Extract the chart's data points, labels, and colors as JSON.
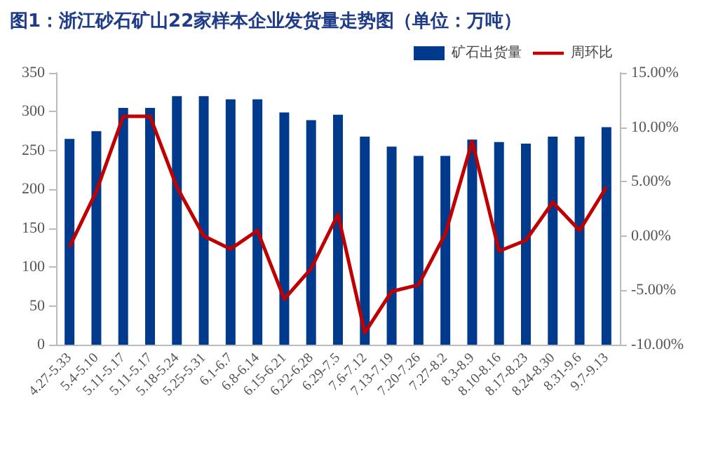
{
  "chart_data": {
    "type": "bar",
    "title": "图1：浙江砂石矿山22家样本企业发货量走势图（单位：万吨）",
    "categories": [
      "4.27-5.33",
      "5.4-5.10",
      "5.11-5.17",
      "5.11-5.17",
      "5.18-5.24",
      "5.25-5.31",
      "6.1-6.7",
      "6.8-6.14",
      "6.15-6.21",
      "6.22-6.28",
      "6.29-7.5",
      "7.6-7.12",
      "7.13-7.19",
      "7.20-7.26",
      "7.27-8.2",
      "8.3-8.9",
      "8.10-8.16",
      "8.17-8.23",
      "8.24-8.30",
      "8.31-9.6",
      "9.7-9.13"
    ],
    "series": [
      {
        "name": "矿石出货量",
        "color": "#003a8c",
        "values": [
          265,
          275,
          305,
          305,
          320,
          320,
          316,
          316,
          299,
          289,
          296,
          268,
          255,
          243,
          243,
          264,
          261,
          259,
          268,
          268,
          280
        ]
      },
      {
        "name": "周环比",
        "type": "line",
        "axis": "y2",
        "color": "#c00000",
        "values": [
          -1.0,
          4.1,
          11.0,
          11.0,
          4.5,
          0.0,
          -1.2,
          0.5,
          -5.8,
          -3.0,
          2.0,
          -8.9,
          -5.1,
          -4.5,
          0.2,
          8.7,
          -1.4,
          -0.4,
          3.1,
          0.5,
          4.5
        ]
      }
    ],
    "ylim": [
      0,
      350
    ],
    "yticks": [
      0,
      50,
      100,
      150,
      200,
      250,
      300,
      350
    ],
    "y2lim": [
      -10,
      15
    ],
    "y2ticks": [
      {
        "value": -10,
        "label": "-10.00%"
      },
      {
        "value": -5,
        "label": "-5.00%"
      },
      {
        "value": 0,
        "label": "0.00%"
      },
      {
        "value": 5,
        "label": "5.00%"
      },
      {
        "value": 10,
        "label": "10.00%"
      },
      {
        "value": 15,
        "label": "15.00%"
      }
    ],
    "grid": false,
    "legend": "top right",
    "marker": "none",
    "line_style": "solid"
  }
}
